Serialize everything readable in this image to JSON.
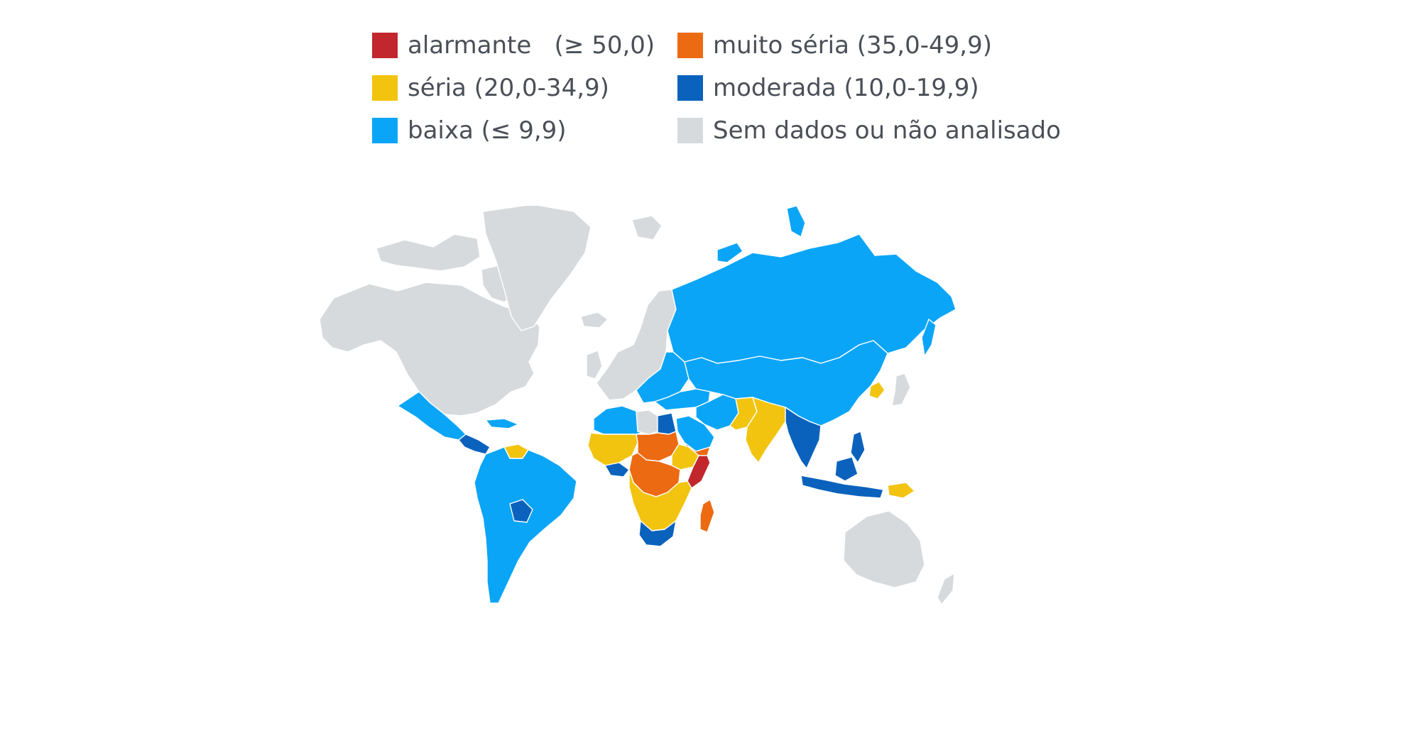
{
  "legend": {
    "items": [
      {
        "label": "alarmante   (≥ 50,0)",
        "color": "#c1272d"
      },
      {
        "label": "muito séria (35,0-49,9)",
        "color": "#ec6a12"
      },
      {
        "label": "séria (20,0-34,9)",
        "color": "#f2c40f"
      },
      {
        "label": "moderada (10,0-19,9)",
        "color": "#0a62bd"
      },
      {
        "label": "baixa (≤ 9,9)",
        "color": "#0aa5f7"
      },
      {
        "label": "Sem dados ou não analisado",
        "color": "#d7dadd"
      }
    ]
  },
  "map": {
    "categories": {
      "alarmante": "#c1272d",
      "muito_seria": "#ec6a12",
      "seria": "#f2c40f",
      "moderada": "#0a62bd",
      "baixa": "#0aa5f7",
      "sem_dados": "#d7dadd"
    },
    "regions": [
      {
        "name": "north-america",
        "category": "sem_dados"
      },
      {
        "name": "greenland",
        "category": "sem_dados"
      },
      {
        "name": "iceland",
        "category": "sem_dados"
      },
      {
        "name": "western-europe",
        "category": "sem_dados"
      },
      {
        "name": "australia",
        "category": "sem_dados"
      },
      {
        "name": "new-zealand",
        "category": "sem_dados"
      },
      {
        "name": "libya",
        "category": "sem_dados"
      },
      {
        "name": "russia",
        "category": "baixa"
      },
      {
        "name": "china",
        "category": "baixa"
      },
      {
        "name": "central-asia",
        "category": "baixa"
      },
      {
        "name": "eastern-europe",
        "category": "baixa"
      },
      {
        "name": "turkey",
        "category": "baixa"
      },
      {
        "name": "iran",
        "category": "baixa"
      },
      {
        "name": "mexico",
        "category": "baixa"
      },
      {
        "name": "south-america",
        "category": "baixa"
      },
      {
        "name": "north-africa",
        "category": "baixa"
      },
      {
        "name": "arabia",
        "category": "baixa"
      },
      {
        "name": "india",
        "category": "seria"
      },
      {
        "name": "pakistan",
        "category": "seria"
      },
      {
        "name": "venezuela",
        "category": "seria"
      },
      {
        "name": "sahel",
        "category": "seria"
      },
      {
        "name": "southern-africa",
        "category": "seria"
      },
      {
        "name": "north-korea",
        "category": "seria"
      },
      {
        "name": "papua-new-guinea",
        "category": "seria"
      },
      {
        "name": "chad",
        "category": "muito_seria"
      },
      {
        "name": "central-africa",
        "category": "muito_seria"
      },
      {
        "name": "madagascar",
        "category": "muito_seria"
      },
      {
        "name": "yemen",
        "category": "muito_seria"
      },
      {
        "name": "somalia",
        "category": "alarmante"
      },
      {
        "name": "egypt",
        "category": "moderada"
      },
      {
        "name": "south-africa",
        "category": "moderada"
      },
      {
        "name": "southeast-asia",
        "category": "moderada"
      },
      {
        "name": "indonesia",
        "category": "moderada"
      },
      {
        "name": "philippines",
        "category": "moderada"
      },
      {
        "name": "central-america",
        "category": "moderada"
      },
      {
        "name": "bolivia",
        "category": "moderada"
      }
    ]
  }
}
